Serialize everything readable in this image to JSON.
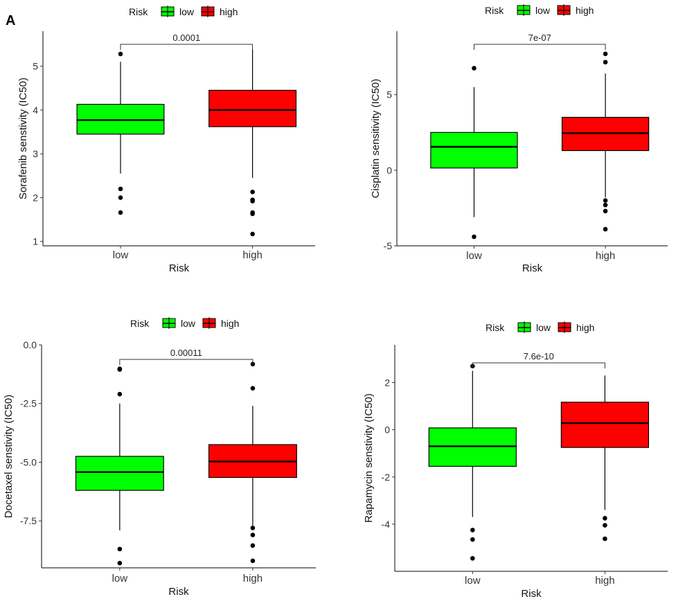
{
  "figure": {
    "panel_label": "A"
  },
  "chart_data": [
    {
      "type": "boxplot",
      "ylabel": "Sorafenib senstivity (IC50)",
      "xlabel": "Risk",
      "categories": [
        "low",
        "high"
      ],
      "ylim": [
        0.9,
        5.8
      ],
      "yticks": [
        1,
        2,
        3,
        4,
        5
      ],
      "ytick_labels": [
        "1",
        "2",
        "3",
        "4",
        "5"
      ],
      "pvalue": "0.0001",
      "legend": {
        "title": "Risk",
        "labels": [
          "low",
          "high"
        ]
      },
      "colors": [
        "#00ff00",
        "#ff0000"
      ],
      "boxes": [
        {
          "group": "low",
          "whisker_low": 2.55,
          "q1": 3.45,
          "median": 3.77,
          "q3": 4.13,
          "whisker_high": 5.1,
          "outliers": [
            5.28,
            2.2,
            2.0,
            1.66
          ]
        },
        {
          "group": "high",
          "whisker_low": 2.45,
          "q1": 3.62,
          "median": 4.0,
          "q3": 4.45,
          "whisker_high": 5.38,
          "outliers": [
            2.13,
            1.95,
            1.92,
            1.66,
            1.63,
            1.17
          ]
        }
      ]
    },
    {
      "type": "boxplot",
      "ylabel": "Cisplatin sensitivity (IC50)",
      "xlabel": "Risk",
      "categories": [
        "low",
        "high"
      ],
      "ylim": [
        -5,
        9.2
      ],
      "yticks": [
        -5,
        0,
        5
      ],
      "ytick_labels": [
        "-5",
        "0",
        "5"
      ],
      "pvalue": "7e-07",
      "legend": {
        "title": "Risk",
        "labels": [
          "low",
          "high"
        ]
      },
      "colors": [
        "#00ff00",
        "#ff0000"
      ],
      "boxes": [
        {
          "group": "low",
          "whisker_low": -3.1,
          "q1": 0.15,
          "median": 1.55,
          "q3": 2.5,
          "whisker_high": 5.5,
          "outliers": [
            6.75,
            -4.4
          ]
        },
        {
          "group": "high",
          "whisker_low": -1.8,
          "q1": 1.3,
          "median": 2.45,
          "q3": 3.5,
          "whisker_high": 6.4,
          "outliers": [
            7.7,
            7.15,
            -2.0,
            -2.3,
            -2.7,
            -3.9
          ]
        }
      ]
    },
    {
      "type": "boxplot",
      "ylabel": "Docetaxel senstivity (IC50)",
      "xlabel": "Risk",
      "categories": [
        "low",
        "high"
      ],
      "ylim": [
        -9.5,
        0
      ],
      "yticks": [
        0,
        -2.5,
        -5,
        -7.5
      ],
      "ytick_labels": [
        "0.0",
        "-2.5",
        "-5.0",
        "-7.5"
      ],
      "pvalue": "0.00011",
      "legend": {
        "title": "Risk",
        "labels": [
          "low",
          "high"
        ]
      },
      "colors": [
        "#00ff00",
        "#ff0000"
      ],
      "boxes": [
        {
          "group": "low",
          "whisker_low": -7.9,
          "q1": -6.2,
          "median": -5.42,
          "q3": -4.75,
          "whisker_high": -2.5,
          "outliers": [
            -1.05,
            -1.02,
            -2.1,
            -8.7,
            -9.3
          ]
        },
        {
          "group": "high",
          "whisker_low": -7.7,
          "q1": -5.65,
          "median": -4.97,
          "q3": -4.25,
          "whisker_high": -2.6,
          "outliers": [
            -0.82,
            -1.85,
            -7.8,
            -8.1,
            -8.55,
            -9.2
          ]
        }
      ]
    },
    {
      "type": "boxplot",
      "ylabel": "Rapamycin senstivity (IC50)",
      "xlabel": "Risk",
      "categories": [
        "low",
        "high"
      ],
      "ylim": [
        -6,
        3.6
      ],
      "yticks": [
        2,
        0,
        -2,
        -4
      ],
      "ytick_labels": [
        "2",
        "0",
        "-2",
        "-4"
      ],
      "pvalue": "7.6e-10",
      "legend": {
        "title": "Risk",
        "labels": [
          "low",
          "high"
        ]
      },
      "colors": [
        "#00ff00",
        "#ff0000"
      ],
      "boxes": [
        {
          "group": "low",
          "whisker_low": -3.7,
          "q1": -1.55,
          "median": -0.7,
          "q3": 0.08,
          "whisker_high": 2.5,
          "outliers": [
            2.7,
            -4.25,
            -4.65,
            -5.45
          ]
        },
        {
          "group": "high",
          "whisker_low": -3.4,
          "q1": -0.75,
          "median": 0.28,
          "q3": 1.17,
          "whisker_high": 2.3,
          "outliers": [
            -3.75,
            -4.05,
            -4.62
          ]
        }
      ]
    }
  ]
}
